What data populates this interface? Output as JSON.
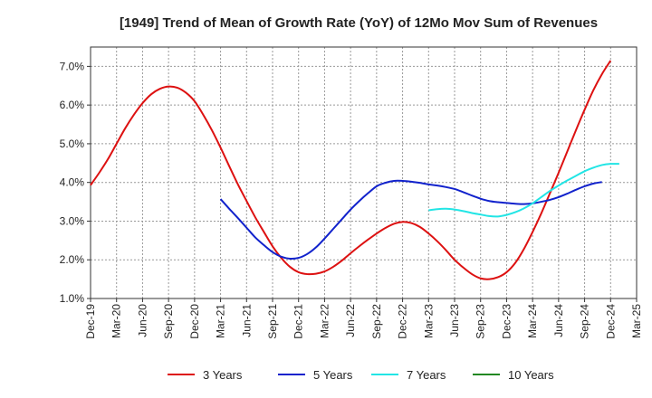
{
  "chart_data": {
    "type": "line",
    "title": "[1949]  Trend of Mean of Growth Rate (YoY) of 12Mo Mov Sum of Revenues",
    "xlabel": "",
    "ylabel": "",
    "ylim": [
      1.0,
      7.5
    ],
    "y_ticks": [
      1.0,
      2.0,
      3.0,
      4.0,
      5.0,
      6.0,
      7.0
    ],
    "y_tick_labels": [
      "1.0%",
      "2.0%",
      "3.0%",
      "4.0%",
      "5.0%",
      "6.0%",
      "7.0%"
    ],
    "x_tick_labels": [
      "Dec-19",
      "Mar-20",
      "Jun-20",
      "Sep-20",
      "Dec-20",
      "Mar-21",
      "Jun-21",
      "Sep-21",
      "Dec-21",
      "Mar-22",
      "Jun-22",
      "Sep-22",
      "Dec-22",
      "Mar-23",
      "Jun-23",
      "Sep-23",
      "Dec-23",
      "Mar-24",
      "Jun-24",
      "Sep-24",
      "Dec-24",
      "Mar-25"
    ],
    "grid": true,
    "legend_position": "bottom",
    "series": [
      {
        "name": "3 Years",
        "color": "#dd1111",
        "start_index": 0,
        "values": [
          3.93,
          4.25,
          4.6,
          5.0,
          5.4,
          5.75,
          6.05,
          6.28,
          6.42,
          6.48,
          6.45,
          6.32,
          6.1,
          5.75,
          5.35,
          4.9,
          4.42,
          3.95,
          3.52,
          3.1,
          2.72,
          2.35,
          2.05,
          1.82,
          1.68,
          1.63,
          1.64,
          1.7,
          1.82,
          1.98,
          2.17,
          2.35,
          2.52,
          2.68,
          2.82,
          2.93,
          2.98,
          2.95,
          2.85,
          2.68,
          2.48,
          2.25,
          2.0,
          1.8,
          1.63,
          1.52,
          1.5,
          1.55,
          1.68,
          1.92,
          2.28,
          2.72,
          3.2,
          3.72,
          4.25,
          4.8,
          5.35,
          5.88,
          6.38,
          6.8,
          7.15
        ]
      },
      {
        "name": "5 Years",
        "color": "#1122cc",
        "start_index": 15,
        "values": [
          3.57,
          3.32,
          3.08,
          2.83,
          2.58,
          2.38,
          2.2,
          2.08,
          2.03,
          2.05,
          2.15,
          2.32,
          2.55,
          2.8,
          3.05,
          3.3,
          3.52,
          3.72,
          3.9,
          3.99,
          4.04,
          4.04,
          4.02,
          3.99,
          3.95,
          3.92,
          3.88,
          3.83,
          3.75,
          3.66,
          3.58,
          3.52,
          3.49,
          3.47,
          3.45,
          3.44,
          3.46,
          3.5,
          3.55,
          3.62,
          3.71,
          3.81,
          3.9,
          3.97,
          4.01
        ]
      },
      {
        "name": "7 Years",
        "color": "#22e5e5",
        "start_index": 39,
        "values": [
          3.28,
          3.31,
          3.32,
          3.3,
          3.26,
          3.21,
          3.17,
          3.13,
          3.12,
          3.16,
          3.23,
          3.33,
          3.46,
          3.62,
          3.78,
          3.92,
          4.05,
          4.17,
          4.29,
          4.38,
          4.45,
          4.48,
          4.48
        ]
      },
      {
        "name": "10 Years",
        "color": "#228822",
        "start_index": 0,
        "values": []
      }
    ]
  }
}
